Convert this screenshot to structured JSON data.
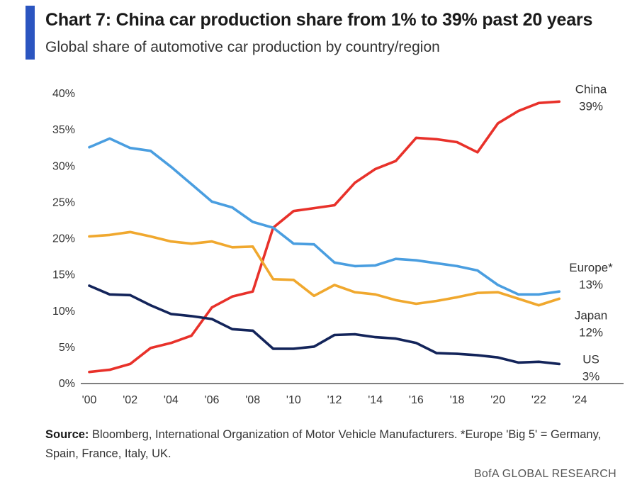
{
  "header": {
    "title": "Chart 7: China car production share from 1% to 39% past 20 years",
    "subtitle": "Global share of automotive car production by country/region",
    "accent_color": "#2b55c0"
  },
  "footer": {
    "source_label": "Source:",
    "source_text": " Bloomberg, International Organization of Motor Vehicle Manufacturers. *Europe 'Big 5' = Germany, Spain, France, Italy, UK.",
    "brand": "BofA GLOBAL RESEARCH"
  },
  "chart_data": {
    "type": "line",
    "xlim": [
      2000,
      2025
    ],
    "ylim": [
      0,
      40
    ],
    "x_ticks": [
      2000,
      2002,
      2004,
      2006,
      2008,
      2010,
      2012,
      2014,
      2016,
      2018,
      2020,
      2022,
      2024
    ],
    "x_tick_labels": [
      "'00",
      "'02",
      "'04",
      "'06",
      "'08",
      "'10",
      "'12",
      "'14",
      "'16",
      "'18",
      "'20",
      "'22",
      "'24"
    ],
    "y_ticks": [
      0,
      5,
      10,
      15,
      20,
      25,
      30,
      35,
      40
    ],
    "y_tick_labels": [
      "0%",
      "5%",
      "10%",
      "15%",
      "20%",
      "25%",
      "30%",
      "35%",
      "40%"
    ],
    "grid": false,
    "x": [
      2000,
      2001,
      2002,
      2003,
      2004,
      2005,
      2006,
      2007,
      2008,
      2009,
      2010,
      2011,
      2012,
      2013,
      2014,
      2015,
      2016,
      2017,
      2018,
      2019,
      2020,
      2021,
      2022,
      2023
    ],
    "series": [
      {
        "name": "China",
        "label_value": "39%",
        "color": "#e8312a",
        "values": [
          1.5,
          1.8,
          2.6,
          4.8,
          5.5,
          6.5,
          10.4,
          11.9,
          12.6,
          21.4,
          23.7,
          24.1,
          24.5,
          27.6,
          29.5,
          30.6,
          33.8,
          33.6,
          33.2,
          31.8,
          35.8,
          37.5,
          38.6,
          38.8
        ]
      },
      {
        "name": "Europe*",
        "label_value": "13%",
        "color": "#4a9ee0",
        "values": [
          32.5,
          33.7,
          32.4,
          32.0,
          29.8,
          27.4,
          25.0,
          24.2,
          22.2,
          21.4,
          19.2,
          19.1,
          16.6,
          16.1,
          16.2,
          17.1,
          16.9,
          16.5,
          16.1,
          15.5,
          13.5,
          12.2,
          12.2,
          12.6
        ]
      },
      {
        "name": "Japan",
        "label_value": "12%",
        "color": "#f0a82e",
        "values": [
          20.2,
          20.4,
          20.8,
          20.2,
          19.5,
          19.2,
          19.5,
          18.7,
          18.8,
          14.3,
          14.2,
          12.0,
          13.5,
          12.5,
          12.2,
          11.4,
          10.9,
          11.3,
          11.8,
          12.4,
          12.5,
          11.6,
          10.7,
          11.6
        ]
      },
      {
        "name": "US",
        "label_value": "3%",
        "color": "#13245a",
        "values": [
          13.4,
          12.2,
          12.1,
          10.7,
          9.5,
          9.2,
          8.8,
          7.4,
          7.2,
          4.7,
          4.7,
          5.0,
          6.6,
          6.7,
          6.3,
          6.1,
          5.5,
          4.1,
          4.0,
          3.8,
          3.5,
          2.8,
          2.9,
          2.6
        ]
      }
    ]
  }
}
